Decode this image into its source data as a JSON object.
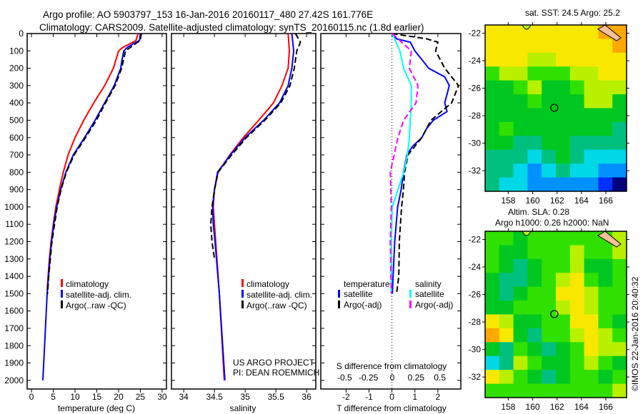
{
  "title": {
    "line1": "Argo profile: AO 5903797_153 16-Jan-2016 20160117_480 27.42S 161.776E",
    "line2": "Climatology: CARS2009. Satellite-adjusted climatology: synTS_20160115.nc (1.8d earlier)"
  },
  "credit": "US ARGO PROJECT",
  "pi": "PI: DEAN ROEMMICH",
  "copyright": "©IMOS 22-Jan-2016 20:40:32",
  "colors": {
    "climatology": "#ff0000",
    "satellite": "#0000ff",
    "argo": "#000000",
    "sat_s": "#00ffff",
    "argo_s": "#ff00ff"
  },
  "chart_data": [
    {
      "type": "line",
      "name": "temperature",
      "xlabel": "temperature (deg C)",
      "xlim": [
        -1,
        31
      ],
      "ylim": [
        2050,
        0
      ],
      "xticks": [
        0,
        5,
        10,
        15,
        20,
        25,
        30
      ],
      "yticks": [
        0,
        100,
        200,
        300,
        400,
        500,
        600,
        700,
        800,
        900,
        1000,
        1100,
        1200,
        1300,
        1400,
        1500,
        1600,
        1700,
        1800,
        1900,
        2000
      ],
      "legend": [
        "climatology",
        "satellite-adj. clim.",
        "Argo(..raw -QC)"
      ],
      "series": [
        {
          "name": "climatology",
          "color": "#ff0000",
          "dash": false,
          "points": [
            [
              0,
              24.5
            ],
            [
              40,
              24
            ],
            [
              60,
              22.5
            ],
            [
              80,
              21
            ],
            [
              100,
              20
            ],
            [
              200,
              18.8
            ],
            [
              300,
              16.8
            ],
            [
              400,
              14.3
            ],
            [
              500,
              12
            ],
            [
              600,
              10
            ],
            [
              700,
              8.4
            ],
            [
              800,
              7.3
            ],
            [
              900,
              6.4
            ],
            [
              1000,
              5.6
            ],
            [
              1100,
              5
            ],
            [
              1200,
              4.5
            ],
            [
              1300,
              4.1
            ],
            [
              1400,
              3.8
            ],
            [
              1480,
              3.6
            ]
          ]
        },
        {
          "name": "satellite-adj. clim.",
          "color": "#0000ff",
          "dash": false,
          "points": [
            [
              0,
              25
            ],
            [
              40,
              24.8
            ],
            [
              60,
              23.3
            ],
            [
              80,
              22
            ],
            [
              100,
              21.2
            ],
            [
              150,
              20.8
            ],
            [
              200,
              20.5
            ],
            [
              300,
              19
            ],
            [
              400,
              16.8
            ],
            [
              500,
              14.6
            ],
            [
              600,
              12.2
            ],
            [
              700,
              9.6
            ],
            [
              800,
              7.9
            ],
            [
              900,
              6.7
            ],
            [
              1000,
              5.8
            ],
            [
              1100,
              5.1
            ],
            [
              1200,
              4.6
            ],
            [
              1300,
              4.2
            ],
            [
              1400,
              3.9
            ],
            [
              1500,
              3.6
            ],
            [
              1600,
              3.4
            ],
            [
              1700,
              3.2
            ],
            [
              1800,
              3
            ],
            [
              1900,
              2.8
            ],
            [
              2000,
              2.6
            ]
          ]
        },
        {
          "name": "Argo(..raw -QC)",
          "color": "#000000",
          "dash": true,
          "points": [
            [
              0,
              25.2
            ],
            [
              40,
              25
            ],
            [
              60,
              23.8
            ],
            [
              100,
              21.6
            ],
            [
              200,
              20.7
            ],
            [
              300,
              19.2
            ],
            [
              400,
              17
            ],
            [
              500,
              14.9
            ],
            [
              600,
              12.4
            ],
            [
              700,
              9.8
            ],
            [
              800,
              8
            ],
            [
              900,
              6.8
            ],
            [
              1000,
              5.9
            ],
            [
              1200,
              4.7
            ],
            [
              1400,
              3.95
            ],
            [
              1500,
              3.7
            ]
          ]
        }
      ]
    },
    {
      "type": "line",
      "name": "salinity",
      "xlabel": "salinity",
      "xlim": [
        33.8,
        36.15
      ],
      "ylim": [
        2050,
        0
      ],
      "xticks": [
        34,
        34.5,
        35,
        35.5,
        36
      ],
      "legend": [
        "climatology",
        "satellite-adj. clim.",
        "Argo(..raw -QC)"
      ],
      "series": [
        {
          "name": "climatology",
          "color": "#ff0000",
          "dash": false,
          "points": [
            [
              0,
              35.7
            ],
            [
              100,
              35.72
            ],
            [
              200,
              35.7
            ],
            [
              300,
              35.6
            ],
            [
              400,
              35.46
            ],
            [
              500,
              35.22
            ],
            [
              600,
              34.97
            ],
            [
              700,
              34.75
            ],
            [
              800,
              34.56
            ],
            [
              900,
              34.5
            ],
            [
              1000,
              34.48
            ],
            [
              1100,
              34.5
            ],
            [
              1200,
              34.52
            ],
            [
              1500,
              34.58
            ],
            [
              2000,
              34.66
            ]
          ]
        },
        {
          "name": "satellite-adj. clim.",
          "color": "#0000ff",
          "dash": false,
          "points": [
            [
              0,
              35.76
            ],
            [
              100,
              35.79
            ],
            [
              200,
              35.76
            ],
            [
              300,
              35.7
            ],
            [
              400,
              35.56
            ],
            [
              500,
              35.3
            ],
            [
              600,
              35.0
            ],
            [
              700,
              34.76
            ],
            [
              800,
              34.55
            ],
            [
              900,
              34.5
            ],
            [
              1000,
              34.47
            ],
            [
              1100,
              34.48
            ],
            [
              1200,
              34.51
            ],
            [
              1500,
              34.58
            ],
            [
              2000,
              34.67
            ]
          ]
        },
        {
          "name": "Argo(..raw -QC)",
          "color": "#000000",
          "dash": true,
          "points": [
            [
              0,
              35.82
            ],
            [
              50,
              35.9
            ],
            [
              100,
              35.84
            ],
            [
              200,
              35.8
            ],
            [
              300,
              35.73
            ],
            [
              400,
              35.58
            ],
            [
              500,
              35.32
            ],
            [
              600,
              35.02
            ],
            [
              700,
              34.78
            ],
            [
              800,
              34.56
            ],
            [
              900,
              34.5
            ],
            [
              1000,
              34.46
            ],
            [
              1100,
              34.44
            ],
            [
              1200,
              34.46
            ],
            [
              1300,
              34.5
            ]
          ]
        }
      ]
    },
    {
      "type": "line",
      "name": "differences",
      "xlabel": "T difference from climatology",
      "x2label": "S difference from climatology",
      "xlim": [
        -3.1,
        3
      ],
      "x2lim": [
        -0.75,
        0.72
      ],
      "ylim": [
        2050,
        0
      ],
      "xticks": [
        -2,
        -1,
        0,
        1,
        2
      ],
      "x2ticks": [
        -0.5,
        -0.25,
        0,
        0.25,
        0.5
      ],
      "legend_t_title": "temperature",
      "legend_s_title": "salinity",
      "legend_t": [
        "satellite",
        "Argo(-adj)"
      ],
      "legend_s": [
        "satellite",
        "Argo(-adj)"
      ],
      "series": [
        {
          "name": "T satellite",
          "axis": "T",
          "color": "#0000ff",
          "dash": false,
          "points": [
            [
              0,
              0
            ],
            [
              30,
              0.2
            ],
            [
              50,
              0.8
            ],
            [
              100,
              1.0
            ],
            [
              150,
              1.3
            ],
            [
              200,
              1.6
            ],
            [
              250,
              2.3
            ],
            [
              300,
              2.5
            ],
            [
              350,
              2.4
            ],
            [
              400,
              2.3
            ],
            [
              450,
              2.4
            ],
            [
              500,
              1.8
            ],
            [
              550,
              1.5
            ],
            [
              600,
              1.3
            ],
            [
              650,
              0.9
            ],
            [
              700,
              0.65
            ],
            [
              800,
              0.5
            ],
            [
              900,
              0.4
            ],
            [
              1000,
              0.25
            ],
            [
              1200,
              0.12
            ],
            [
              1400,
              0.05
            ],
            [
              1500,
              0.02
            ]
          ]
        },
        {
          "name": "T Argo(-adj)",
          "axis": "T",
          "color": "#000000",
          "dash": true,
          "points": [
            [
              0,
              0
            ],
            [
              30,
              1.5
            ],
            [
              50,
              2.0
            ],
            [
              100,
              1.9
            ],
            [
              200,
              2.3
            ],
            [
              300,
              2.9
            ],
            [
              400,
              2.6
            ],
            [
              500,
              1.7
            ],
            [
              600,
              1.3
            ],
            [
              700,
              0.7
            ],
            [
              800,
              0.55
            ],
            [
              900,
              0.5
            ],
            [
              1000,
              0.42
            ],
            [
              1200,
              0.32
            ],
            [
              1400,
              0.3
            ],
            [
              1500,
              0.2
            ]
          ]
        },
        {
          "name": "S satellite",
          "axis": "S",
          "color": "#00ffff",
          "dash": false,
          "points": [
            [
              0,
              0
            ],
            [
              50,
              0.04
            ],
            [
              100,
              0.08
            ],
            [
              200,
              0.12
            ],
            [
              300,
              0.2
            ],
            [
              400,
              0.2
            ],
            [
              500,
              0.19
            ],
            [
              600,
              0.18
            ],
            [
              700,
              0.16
            ],
            [
              800,
              0.12
            ],
            [
              900,
              0.06
            ],
            [
              1000,
              0.0
            ],
            [
              1200,
              -0.01
            ],
            [
              1500,
              -0.01
            ]
          ]
        },
        {
          "name": "S Argo(-adj)",
          "axis": "S",
          "color": "#ff00ff",
          "dash": true,
          "points": [
            [
              0,
              0
            ],
            [
              50,
              0.1
            ],
            [
              100,
              0.2
            ],
            [
              200,
              0.18
            ],
            [
              300,
              0.27
            ],
            [
              400,
              0.25
            ],
            [
              500,
              0.12
            ],
            [
              600,
              0.06
            ],
            [
              700,
              0.02
            ],
            [
              800,
              -0.02
            ],
            [
              1000,
              -0.01
            ],
            [
              1200,
              -0.02
            ],
            [
              1500,
              -0.01
            ]
          ]
        }
      ]
    },
    {
      "type": "heatmap",
      "name": "sst-map",
      "title": "sat. SST: 24.5 Argo: 25.2",
      "lon_ticks": [
        158,
        160,
        162,
        164,
        166
      ],
      "lat_ticks": [
        -22,
        -24,
        -26,
        -28,
        -30,
        -32
      ],
      "lon_range": [
        156.1,
        167.7
      ],
      "lat_range": [
        -21.4,
        -33.5
      ],
      "marker": {
        "lon": 161.776,
        "lat": -27.42
      },
      "grid": [
        [
          8,
          8,
          8,
          8,
          8,
          8,
          8,
          8,
          9,
          9
        ],
        [
          8,
          8,
          8,
          8,
          8,
          8,
          8,
          8,
          8,
          9
        ],
        [
          8,
          8,
          8,
          7,
          7,
          8,
          8,
          8,
          8,
          8
        ],
        [
          6,
          7,
          7,
          6,
          6,
          6,
          7,
          7,
          8,
          8
        ],
        [
          5,
          5,
          6,
          7,
          5,
          5,
          6,
          7,
          7,
          7
        ],
        [
          5,
          5,
          5,
          6,
          5,
          5,
          5,
          7,
          7,
          5
        ],
        [
          5,
          5,
          5,
          5,
          5,
          5,
          5,
          5,
          5,
          5
        ],
        [
          5,
          6,
          5,
          5,
          5,
          5,
          5,
          5,
          5,
          4
        ],
        [
          5,
          5,
          4,
          4,
          5,
          5,
          4,
          4,
          4,
          4
        ],
        [
          4,
          4,
          4,
          3,
          4,
          5,
          4,
          3,
          3,
          3
        ],
        [
          4,
          4,
          3,
          2,
          3,
          4,
          3,
          3,
          2,
          2
        ],
        [
          4,
          3,
          3,
          2,
          2,
          2,
          2,
          2,
          1,
          0
        ]
      ]
    },
    {
      "type": "heatmap",
      "name": "sla-map",
      "title": "Altim. SLA: 0.28",
      "subtitle": "Argo h1000: 0.26 h2000: NaN",
      "lon_ticks": [
        158,
        160,
        162,
        164,
        166
      ],
      "lat_ticks": [
        -22,
        -24,
        -26,
        -28,
        -30,
        -32
      ],
      "lon_range": [
        156.1,
        167.7
      ],
      "lat_range": [
        -21.4,
        -33.5
      ],
      "marker": {
        "lon": 161.776,
        "lat": -27.42
      },
      "grid": [
        [
          6,
          6,
          5,
          6,
          6,
          6,
          6,
          6,
          6,
          7
        ],
        [
          6,
          5,
          5,
          6,
          6,
          6,
          7,
          6,
          6,
          7
        ],
        [
          6,
          5,
          4,
          5,
          6,
          6,
          7,
          5,
          5,
          6
        ],
        [
          5,
          4,
          4,
          5,
          6,
          7,
          8,
          6,
          5,
          6
        ],
        [
          5,
          4,
          5,
          6,
          6,
          8,
          8,
          7,
          6,
          6
        ],
        [
          5,
          5,
          6,
          6,
          6,
          7,
          8,
          7,
          6,
          6
        ],
        [
          8,
          7,
          5,
          5,
          6,
          6,
          8,
          8,
          6,
          5
        ],
        [
          9,
          8,
          5,
          4,
          6,
          6,
          7,
          8,
          7,
          6
        ],
        [
          5,
          4,
          6,
          5,
          4,
          5,
          6,
          8,
          7,
          7
        ],
        [
          3,
          4,
          7,
          6,
          5,
          5,
          6,
          7,
          6,
          5
        ],
        [
          8,
          7,
          6,
          5,
          4,
          5,
          6,
          6,
          5,
          6
        ],
        [
          6,
          6,
          6,
          6,
          6,
          6,
          6,
          6,
          6,
          7
        ]
      ]
    }
  ]
}
